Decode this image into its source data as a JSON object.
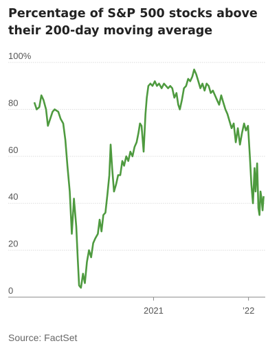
{
  "chart_data": {
    "type": "line",
    "title": "Percentage of S&P 500 stocks above their 200-day moving average",
    "source": "Source: FactSet",
    "xlabel": "",
    "ylabel": "",
    "ylim": [
      0,
      100
    ],
    "xlim": [
      "2019-10-01",
      "2022-03-01"
    ],
    "grid": "horizontal",
    "line_color": "#4e9a3f",
    "y_ticks": [
      {
        "value": 0,
        "label": "0"
      },
      {
        "value": 20,
        "label": "20"
      },
      {
        "value": 40,
        "label": "40"
      },
      {
        "value": 60,
        "label": "60"
      },
      {
        "value": 80,
        "label": "80"
      },
      {
        "value": 100,
        "label": "100%"
      }
    ],
    "x_ticks": [
      {
        "date": "2021-01-01",
        "label": "2021"
      },
      {
        "date": "2022-01-01",
        "label": "’22"
      }
    ],
    "series": [
      {
        "values": [
          [
            "2019-10-01",
            83
          ],
          [
            "2019-10-10",
            80
          ],
          [
            "2019-10-20",
            81
          ],
          [
            "2019-10-28",
            86
          ],
          [
            "2019-11-05",
            84
          ],
          [
            "2019-11-15",
            80
          ],
          [
            "2019-11-22",
            73
          ],
          [
            "2019-12-01",
            76
          ],
          [
            "2019-12-10",
            79
          ],
          [
            "2019-12-18",
            80
          ],
          [
            "2020-01-01",
            79
          ],
          [
            "2020-01-10",
            76
          ],
          [
            "2020-01-20",
            74
          ],
          [
            "2020-01-28",
            67
          ],
          [
            "2020-02-05",
            56
          ],
          [
            "2020-02-14",
            45
          ],
          [
            "2020-02-22",
            27
          ],
          [
            "2020-03-01",
            42
          ],
          [
            "2020-03-10",
            30
          ],
          [
            "2020-03-16",
            16
          ],
          [
            "2020-03-21",
            5
          ],
          [
            "2020-03-28",
            4
          ],
          [
            "2020-04-05",
            10
          ],
          [
            "2020-04-12",
            6
          ],
          [
            "2020-04-20",
            15
          ],
          [
            "2020-04-28",
            20
          ],
          [
            "2020-05-06",
            17
          ],
          [
            "2020-05-14",
            23
          ],
          [
            "2020-05-22",
            25
          ],
          [
            "2020-06-01",
            27
          ],
          [
            "2020-06-08",
            33
          ],
          [
            "2020-06-15",
            28
          ],
          [
            "2020-06-22",
            35
          ],
          [
            "2020-06-30",
            36
          ],
          [
            "2020-07-08",
            44
          ],
          [
            "2020-07-15",
            52
          ],
          [
            "2020-07-20",
            65
          ],
          [
            "2020-07-26",
            55
          ],
          [
            "2020-08-02",
            45
          ],
          [
            "2020-08-10",
            48
          ],
          [
            "2020-08-18",
            52
          ],
          [
            "2020-08-26",
            52
          ],
          [
            "2020-09-03",
            58
          ],
          [
            "2020-09-10",
            56
          ],
          [
            "2020-09-18",
            60
          ],
          [
            "2020-09-26",
            58
          ],
          [
            "2020-10-04",
            62
          ],
          [
            "2020-10-12",
            60
          ],
          [
            "2020-10-20",
            64
          ],
          [
            "2020-10-28",
            66
          ],
          [
            "2020-11-04",
            70
          ],
          [
            "2020-11-10",
            74
          ],
          [
            "2020-11-16",
            73
          ],
          [
            "2020-11-24",
            62
          ],
          [
            "2020-12-01",
            78
          ],
          [
            "2020-12-06",
            85
          ],
          [
            "2020-12-12",
            90
          ],
          [
            "2020-12-20",
            91
          ],
          [
            "2020-12-28",
            90
          ],
          [
            "2021-01-06",
            92
          ],
          [
            "2021-01-14",
            90
          ],
          [
            "2021-01-22",
            91
          ],
          [
            "2021-02-01",
            89
          ],
          [
            "2021-02-10",
            91
          ],
          [
            "2021-02-18",
            90
          ],
          [
            "2021-02-26",
            89
          ],
          [
            "2021-03-06",
            90
          ],
          [
            "2021-03-14",
            89
          ],
          [
            "2021-03-22",
            85
          ],
          [
            "2021-03-30",
            87
          ],
          [
            "2021-04-06",
            82
          ],
          [
            "2021-04-12",
            80
          ],
          [
            "2021-04-20",
            84
          ],
          [
            "2021-04-28",
            89
          ],
          [
            "2021-05-06",
            90
          ],
          [
            "2021-05-14",
            93
          ],
          [
            "2021-05-22",
            92
          ],
          [
            "2021-05-30",
            94
          ],
          [
            "2021-06-06",
            97
          ],
          [
            "2021-06-14",
            95
          ],
          [
            "2021-06-22",
            92
          ],
          [
            "2021-06-30",
            89
          ],
          [
            "2021-07-08",
            91
          ],
          [
            "2021-07-16",
            88
          ],
          [
            "2021-07-24",
            91
          ],
          [
            "2021-08-01",
            90
          ],
          [
            "2021-08-09",
            87
          ],
          [
            "2021-08-17",
            88
          ],
          [
            "2021-08-25",
            86
          ],
          [
            "2021-09-02",
            84
          ],
          [
            "2021-09-10",
            82
          ],
          [
            "2021-09-18",
            86
          ],
          [
            "2021-09-26",
            83
          ],
          [
            "2021-10-04",
            80
          ],
          [
            "2021-10-12",
            78
          ],
          [
            "2021-10-20",
            75
          ],
          [
            "2021-10-28",
            72
          ],
          [
            "2021-11-05",
            74
          ],
          [
            "2021-11-13",
            66
          ],
          [
            "2021-11-21",
            72
          ],
          [
            "2021-11-29",
            65
          ],
          [
            "2021-12-07",
            70
          ],
          [
            "2021-12-15",
            74
          ],
          [
            "2021-12-22",
            71
          ],
          [
            "2021-12-30",
            73
          ],
          [
            "2022-01-06",
            60
          ],
          [
            "2022-01-12",
            48
          ],
          [
            "2022-01-18",
            40
          ],
          [
            "2022-01-24",
            55
          ],
          [
            "2022-01-28",
            45
          ],
          [
            "2022-02-03",
            57
          ],
          [
            "2022-02-08",
            38
          ],
          [
            "2022-02-12",
            35
          ],
          [
            "2022-02-16",
            45
          ],
          [
            "2022-02-20",
            42
          ],
          [
            "2022-02-24",
            37
          ],
          [
            "2022-02-28",
            43
          ]
        ]
      }
    ]
  }
}
